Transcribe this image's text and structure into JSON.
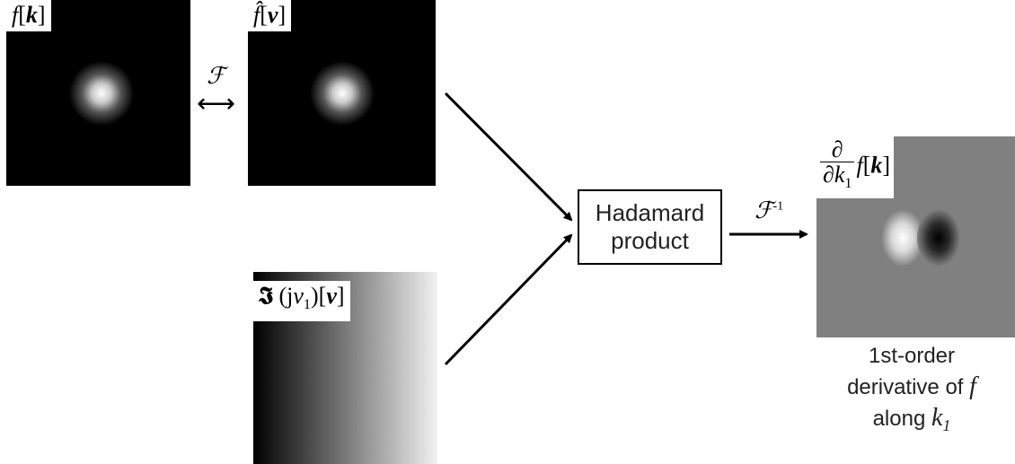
{
  "panels": {
    "f_k": {
      "label_func": "f",
      "label_arg": "k"
    },
    "f_hat_nu": {
      "label_func": "f̂",
      "label_arg": "ν"
    },
    "multiplier": {
      "label_fraktur": "𝕴",
      "label_paren_j": "j",
      "label_nu": "ν",
      "label_sub": "1",
      "label_arg": "ν"
    },
    "result": {
      "label_num": "∂",
      "label_den": "∂k",
      "label_den_sub": "1",
      "label_func": "f",
      "label_arg": "k"
    }
  },
  "operators": {
    "fourier": "ℱ",
    "fourier_arrow": "⟷",
    "inverse_fourier": "ℱ",
    "inverse_sup": "-1"
  },
  "hadamard": {
    "line1": "Hadamard",
    "line2": "product"
  },
  "caption": {
    "line1": "1st-order",
    "line2_text": "derivative of",
    "line2_var": "f",
    "line3_text": "along",
    "line3_var": "k",
    "line3_sub": "1"
  },
  "colors": {
    "background": "#ffffff",
    "panel_dark": "#000000",
    "result_gray": "#808080"
  }
}
